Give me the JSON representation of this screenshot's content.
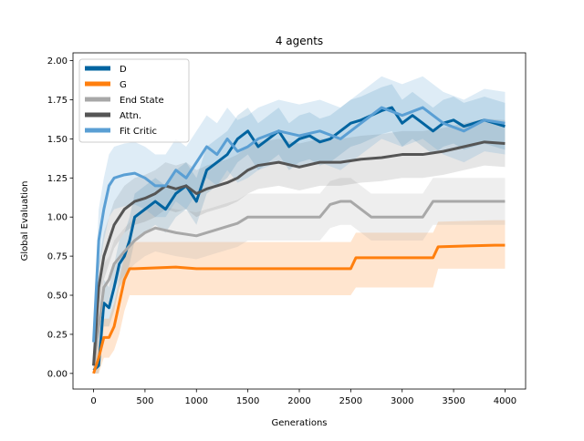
{
  "chart_data": {
    "type": "line",
    "title": "4 agents",
    "xlabel": "Generations",
    "ylabel": "Global Evaluation",
    "xlim": [
      -200,
      4200
    ],
    "ylim": [
      -0.1,
      2.05
    ],
    "xticks": [
      0,
      500,
      1000,
      1500,
      2000,
      2500,
      3000,
      3500,
      4000
    ],
    "yticks": [
      0.0,
      0.25,
      0.5,
      0.75,
      1.0,
      1.25,
      1.5,
      1.75,
      2.0
    ],
    "xtick_labels": [
      "0",
      "500",
      "1000",
      "1500",
      "2000",
      "2500",
      "3000",
      "3500",
      "4000"
    ],
    "ytick_labels": [
      "0.00",
      "0.25",
      "0.50",
      "0.75",
      "1.00",
      "1.25",
      "1.50",
      "1.75",
      "2.00"
    ],
    "grid": false,
    "legend_position": "top-left",
    "series": [
      {
        "name": "D",
        "color": "#0064a0",
        "band_opacity": 0.15,
        "x": [
          0,
          50,
          100,
          150,
          200,
          250,
          300,
          350,
          400,
          500,
          600,
          700,
          800,
          900,
          1000,
          1100,
          1200,
          1300,
          1400,
          1500,
          1600,
          1700,
          1800,
          1900,
          2000,
          2100,
          2200,
          2300,
          2400,
          2500,
          2600,
          2700,
          2800,
          2900,
          3000,
          3100,
          3200,
          3300,
          3400,
          3500,
          3600,
          3700,
          3800,
          3900,
          4000
        ],
        "y": [
          0.02,
          0.05,
          0.45,
          0.42,
          0.55,
          0.7,
          0.75,
          0.85,
          1.0,
          1.05,
          1.1,
          1.05,
          1.15,
          1.2,
          1.1,
          1.3,
          1.35,
          1.4,
          1.5,
          1.55,
          1.45,
          1.5,
          1.55,
          1.45,
          1.5,
          1.52,
          1.48,
          1.5,
          1.55,
          1.6,
          1.62,
          1.65,
          1.68,
          1.7,
          1.6,
          1.65,
          1.6,
          1.55,
          1.6,
          1.62,
          1.58,
          1.6,
          1.62,
          1.6,
          1.58
        ],
        "lower": [
          0.0,
          0.0,
          0.3,
          0.3,
          0.4,
          0.55,
          0.6,
          0.7,
          0.85,
          0.9,
          0.95,
          0.9,
          1.0,
          1.05,
          0.95,
          1.15,
          1.2,
          1.25,
          1.35,
          1.4,
          1.3,
          1.35,
          1.4,
          1.3,
          1.35,
          1.37,
          1.33,
          1.35,
          1.4,
          1.45,
          1.47,
          1.5,
          1.53,
          1.55,
          1.45,
          1.5,
          1.45,
          1.4,
          1.45,
          1.47,
          1.43,
          1.45,
          1.47,
          1.45,
          1.43
        ],
        "upper": [
          0.05,
          0.15,
          0.6,
          0.55,
          0.7,
          0.85,
          0.9,
          1.0,
          1.15,
          1.2,
          1.25,
          1.2,
          1.3,
          1.35,
          1.25,
          1.45,
          1.5,
          1.55,
          1.65,
          1.7,
          1.6,
          1.65,
          1.7,
          1.6,
          1.65,
          1.67,
          1.63,
          1.65,
          1.7,
          1.75,
          1.77,
          1.8,
          1.83,
          1.85,
          1.75,
          1.8,
          1.75,
          1.7,
          1.75,
          1.77,
          1.73,
          1.75,
          1.77,
          1.75,
          1.73
        ]
      },
      {
        "name": "G",
        "color": "#ff7f0e",
        "band_opacity": 0.2,
        "x": [
          0,
          50,
          100,
          150,
          200,
          250,
          300,
          350,
          400,
          800,
          1000,
          2500,
          2550,
          3300,
          3350,
          3900,
          4000
        ],
        "y": [
          0.0,
          0.1,
          0.23,
          0.23,
          0.3,
          0.45,
          0.6,
          0.67,
          0.67,
          0.68,
          0.67,
          0.67,
          0.74,
          0.74,
          0.81,
          0.82,
          0.82
        ],
        "lower": [
          0.0,
          0.0,
          0.1,
          0.1,
          0.15,
          0.25,
          0.4,
          0.5,
          0.5,
          0.5,
          0.5,
          0.5,
          0.55,
          0.55,
          0.67,
          0.67,
          0.67
        ],
        "upper": [
          0.05,
          0.2,
          0.35,
          0.35,
          0.45,
          0.6,
          0.75,
          0.84,
          0.84,
          0.84,
          0.84,
          0.84,
          0.9,
          0.9,
          0.97,
          0.98,
          0.98
        ]
      },
      {
        "name": "End State",
        "color": "#a8a8a8",
        "band_opacity": 0.2,
        "x": [
          0,
          50,
          100,
          150,
          200,
          300,
          400,
          500,
          600,
          800,
          1000,
          1200,
          1400,
          1500,
          1600,
          1800,
          2000,
          2200,
          2300,
          2400,
          2500,
          2700,
          2900,
          3200,
          3300,
          3500,
          3700,
          4000
        ],
        "y": [
          0.05,
          0.3,
          0.55,
          0.6,
          0.7,
          0.78,
          0.85,
          0.9,
          0.93,
          0.9,
          0.88,
          0.92,
          0.96,
          1.0,
          1.0,
          1.0,
          1.0,
          1.0,
          1.08,
          1.1,
          1.1,
          1.0,
          1.0,
          1.0,
          1.1,
          1.1,
          1.1,
          1.1
        ],
        "lower": [
          0.0,
          0.15,
          0.4,
          0.45,
          0.55,
          0.63,
          0.7,
          0.75,
          0.78,
          0.75,
          0.73,
          0.77,
          0.81,
          0.85,
          0.85,
          0.85,
          0.85,
          0.85,
          0.93,
          0.95,
          0.95,
          0.85,
          0.85,
          0.85,
          0.95,
          0.95,
          0.95,
          0.95
        ],
        "upper": [
          0.1,
          0.45,
          0.7,
          0.75,
          0.85,
          0.93,
          1.0,
          1.05,
          1.08,
          1.05,
          1.03,
          1.07,
          1.11,
          1.15,
          1.15,
          1.15,
          1.15,
          1.15,
          1.23,
          1.25,
          1.25,
          1.15,
          1.15,
          1.15,
          1.25,
          1.25,
          1.25,
          1.25
        ]
      },
      {
        "name": "Attn.",
        "color": "#555555",
        "band_opacity": 0.15,
        "x": [
          0,
          50,
          100,
          150,
          200,
          300,
          400,
          500,
          600,
          700,
          800,
          900,
          1000,
          1100,
          1200,
          1300,
          1400,
          1500,
          1600,
          1800,
          2000,
          2200,
          2400,
          2600,
          2800,
          3000,
          3200,
          3400,
          3600,
          3800,
          4000
        ],
        "y": [
          0.05,
          0.55,
          0.75,
          0.85,
          0.95,
          1.05,
          1.1,
          1.12,
          1.15,
          1.2,
          1.18,
          1.2,
          1.15,
          1.18,
          1.2,
          1.22,
          1.25,
          1.3,
          1.33,
          1.35,
          1.32,
          1.35,
          1.35,
          1.37,
          1.38,
          1.4,
          1.4,
          1.42,
          1.45,
          1.48,
          1.47
        ],
        "lower": [
          0.0,
          0.4,
          0.6,
          0.7,
          0.8,
          0.9,
          0.95,
          0.97,
          1.0,
          1.05,
          1.03,
          1.05,
          1.0,
          1.03,
          1.05,
          1.07,
          1.1,
          1.15,
          1.18,
          1.2,
          1.17,
          1.2,
          1.2,
          1.22,
          1.23,
          1.25,
          1.25,
          1.27,
          1.3,
          1.33,
          1.32
        ],
        "upper": [
          0.1,
          0.7,
          0.9,
          1.0,
          1.1,
          1.2,
          1.25,
          1.27,
          1.3,
          1.35,
          1.33,
          1.35,
          1.3,
          1.33,
          1.35,
          1.37,
          1.4,
          1.45,
          1.48,
          1.5,
          1.47,
          1.5,
          1.5,
          1.52,
          1.53,
          1.55,
          1.55,
          1.57,
          1.6,
          1.63,
          1.62
        ]
      },
      {
        "name": "Fit Critic",
        "color": "#5a9fd4",
        "band_opacity": 0.2,
        "x": [
          0,
          50,
          100,
          150,
          200,
          300,
          400,
          500,
          600,
          700,
          800,
          900,
          1000,
          1100,
          1200,
          1300,
          1400,
          1500,
          1600,
          1800,
          2000,
          2200,
          2400,
          2600,
          2800,
          3000,
          3200,
          3400,
          3600,
          3800,
          4000
        ],
        "y": [
          0.2,
          0.85,
          1.05,
          1.2,
          1.25,
          1.27,
          1.28,
          1.25,
          1.2,
          1.2,
          1.3,
          1.25,
          1.35,
          1.45,
          1.4,
          1.5,
          1.42,
          1.45,
          1.5,
          1.55,
          1.52,
          1.55,
          1.5,
          1.6,
          1.7,
          1.65,
          1.7,
          1.6,
          1.55,
          1.62,
          1.6
        ],
        "lower": [
          0.05,
          0.65,
          0.85,
          1.0,
          1.05,
          1.07,
          1.08,
          1.05,
          1.0,
          1.0,
          1.1,
          1.05,
          1.15,
          1.25,
          1.2,
          1.3,
          1.22,
          1.25,
          1.3,
          1.35,
          1.32,
          1.35,
          1.3,
          1.4,
          1.5,
          1.45,
          1.5,
          1.4,
          1.35,
          1.42,
          1.4
        ],
        "upper": [
          0.35,
          1.05,
          1.25,
          1.4,
          1.45,
          1.47,
          1.48,
          1.45,
          1.4,
          1.4,
          1.5,
          1.45,
          1.55,
          1.65,
          1.6,
          1.7,
          1.62,
          1.65,
          1.7,
          1.75,
          1.72,
          1.75,
          1.7,
          1.8,
          1.9,
          1.85,
          1.9,
          1.8,
          1.75,
          1.82,
          1.8
        ]
      }
    ]
  }
}
